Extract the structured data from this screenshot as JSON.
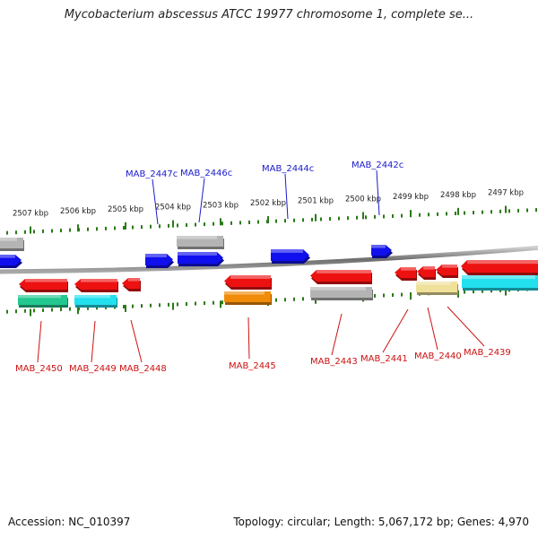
{
  "title": "Mycobacterium abscessus ATCC 19977 chromosome 1, complete se...",
  "footer": {
    "accession": "Accession: NC_010397",
    "stats": "Topology: circular; Length: 5,067,172 bp; Genes: 4,970"
  },
  "colors": {
    "backbone": "#8c8c8c",
    "tick": "#2a7a18",
    "tick_label": "#222222",
    "plus_gene": "#1010ee",
    "plus_label": "#1a1acc",
    "minus_gene": "#ee1111",
    "minus_label": "#cc1111",
    "gray_feature": "#b4b4b4",
    "green_feature": "#22c890",
    "cyan_feature": "#22e0ee",
    "orange_feature": "#f08c08",
    "khaki_feature": "#efe09a"
  },
  "scale": {
    "unit": "kbp",
    "ticks": [
      {
        "label": "2507 kbp"
      },
      {
        "label": "2506 kbp"
      },
      {
        "label": "2505 kbp"
      },
      {
        "label": "2504 kbp"
      },
      {
        "label": "2503 kbp"
      },
      {
        "label": "2502 kbp"
      },
      {
        "label": "2501 kbp"
      },
      {
        "label": "2500 kbp"
      },
      {
        "label": "2499 kbp"
      },
      {
        "label": "2498 kbp"
      },
      {
        "label": "2497 kbp"
      }
    ]
  },
  "plus_strand_labels": [
    "MAB_2447c",
    "MAB_2446c",
    "MAB_2444c",
    "MAB_2442c"
  ],
  "minus_strand_labels": [
    "MAB_2450",
    "MAB_2449",
    "MAB_2448",
    "MAB_2445",
    "MAB_2443",
    "MAB_2441",
    "MAB_2440",
    "MAB_2439"
  ]
}
